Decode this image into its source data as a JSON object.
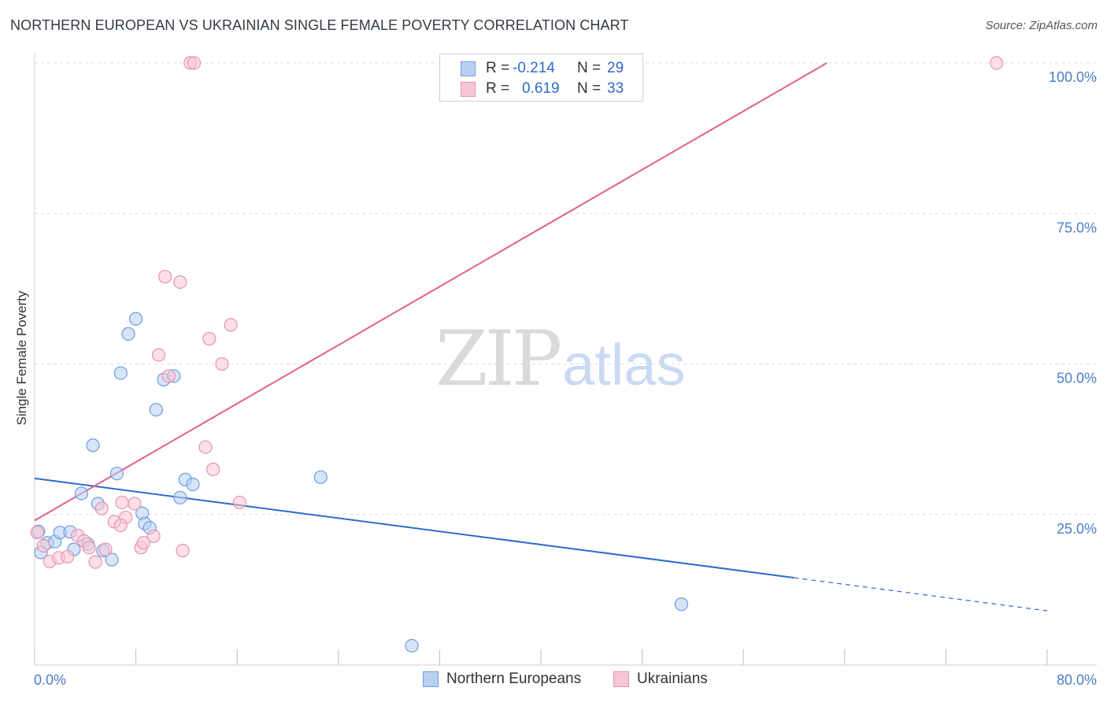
{
  "header": {
    "title": "NORTHERN EUROPEAN VS UKRAINIAN SINGLE FEMALE POVERTY CORRELATION CHART",
    "source": "Source: ZipAtlas.com"
  },
  "watermark": {
    "zip": "ZIP",
    "atlas": "atlas"
  },
  "legend_top": {
    "rows": [
      {
        "r_label": "R =",
        "r_value": "-0.214",
        "n_label": "N =",
        "n_value": "29"
      },
      {
        "r_label": "R =",
        "r_value": "0.619",
        "n_label": "N =",
        "n_value": "33"
      }
    ]
  },
  "legend_bottom": {
    "items": [
      "Northern Europeans",
      "Ukrainians"
    ]
  },
  "colors": {
    "blue_fill": "#b8d0f2",
    "blue_stroke": "#6b9ee0",
    "blue_line": "#2f6ad0",
    "pink_fill": "#f7c6d4",
    "pink_stroke": "#e892ad",
    "pink_line": "#e0608a",
    "grid": "#dcdcdc",
    "tick_text": "#4a7cc9"
  },
  "chart_data": {
    "type": "scatter",
    "title": "NORTHERN EUROPEAN VS UKRAINIAN SINGLE FEMALE POVERTY CORRELATION CHART",
    "xlabel": "",
    "ylabel": "Single Female Poverty",
    "xlim": [
      0,
      80
    ],
    "ylim": [
      0,
      100
    ],
    "x_tick_labels": [
      "0.0%",
      "80.0%"
    ],
    "y_tick_labels": [
      "100.0%",
      "75.0%",
      "50.0%",
      "25.0%"
    ],
    "y_tick_values": [
      100,
      75,
      50,
      25
    ],
    "grid": true,
    "legend_position": "bottom",
    "series": [
      {
        "name": "Northern Europeans",
        "color": "#6b9ee0",
        "r": -0.214,
        "n": 29,
        "points": [
          [
            0.3,
            22.2
          ],
          [
            0.5,
            18.7
          ],
          [
            1.0,
            20.3
          ],
          [
            1.6,
            20.5
          ],
          [
            2.0,
            22.0
          ],
          [
            2.8,
            22.1
          ],
          [
            3.1,
            19.2
          ],
          [
            3.7,
            28.5
          ],
          [
            4.2,
            20.1
          ],
          [
            4.6,
            36.5
          ],
          [
            5.0,
            26.8
          ],
          [
            5.4,
            19.0
          ],
          [
            6.1,
            17.5
          ],
          [
            6.5,
            31.8
          ],
          [
            6.8,
            48.5
          ],
          [
            7.4,
            55.0
          ],
          [
            8.0,
            57.5
          ],
          [
            8.5,
            25.2
          ],
          [
            8.7,
            23.5
          ],
          [
            9.1,
            22.8
          ],
          [
            9.6,
            42.4
          ],
          [
            10.2,
            47.4
          ],
          [
            11.0,
            48.0
          ],
          [
            11.5,
            27.8
          ],
          [
            11.9,
            30.8
          ],
          [
            12.5,
            30.0
          ],
          [
            22.6,
            31.2
          ],
          [
            51.1,
            10.1
          ],
          [
            29.8,
            3.2
          ]
        ],
        "trend": {
          "x0": 0,
          "y0": 31.0,
          "x1": 60.0,
          "y1": 14.5,
          "dashed_to_x": 80,
          "dashed_to_y": 9.0
        }
      },
      {
        "name": "Ukrainians",
        "color": "#e892ad",
        "r": 0.619,
        "n": 33,
        "points": [
          [
            0.2,
            22.0
          ],
          [
            0.7,
            19.8
          ],
          [
            1.2,
            17.2
          ],
          [
            1.9,
            17.8
          ],
          [
            2.6,
            18.0
          ],
          [
            3.4,
            21.5
          ],
          [
            3.9,
            20.6
          ],
          [
            4.3,
            19.5
          ],
          [
            4.8,
            17.1
          ],
          [
            5.3,
            26.0
          ],
          [
            6.3,
            23.8
          ],
          [
            6.9,
            27.0
          ],
          [
            7.2,
            24.5
          ],
          [
            7.9,
            26.8
          ],
          [
            8.4,
            19.5
          ],
          [
            8.6,
            20.3
          ],
          [
            9.4,
            21.4
          ],
          [
            9.8,
            51.5
          ],
          [
            10.3,
            64.5
          ],
          [
            10.6,
            48.0
          ],
          [
            11.5,
            63.6
          ],
          [
            11.7,
            19.0
          ],
          [
            12.3,
            100.0
          ],
          [
            12.6,
            100.0
          ],
          [
            13.5,
            36.2
          ],
          [
            13.8,
            54.2
          ],
          [
            14.1,
            32.5
          ],
          [
            14.8,
            50.0
          ],
          [
            15.5,
            56.5
          ],
          [
            16.2,
            27.0
          ],
          [
            76.0,
            100.0
          ],
          [
            6.8,
            23.2
          ],
          [
            5.6,
            19.2
          ]
        ],
        "trend": {
          "x0": 0,
          "y0": 24.0,
          "x1": 62.6,
          "y1": 100.0
        }
      }
    ]
  },
  "axes": {
    "y_label": "Single Female Poverty",
    "x_min_label": "0.0%",
    "x_max_label": "80.0%"
  }
}
